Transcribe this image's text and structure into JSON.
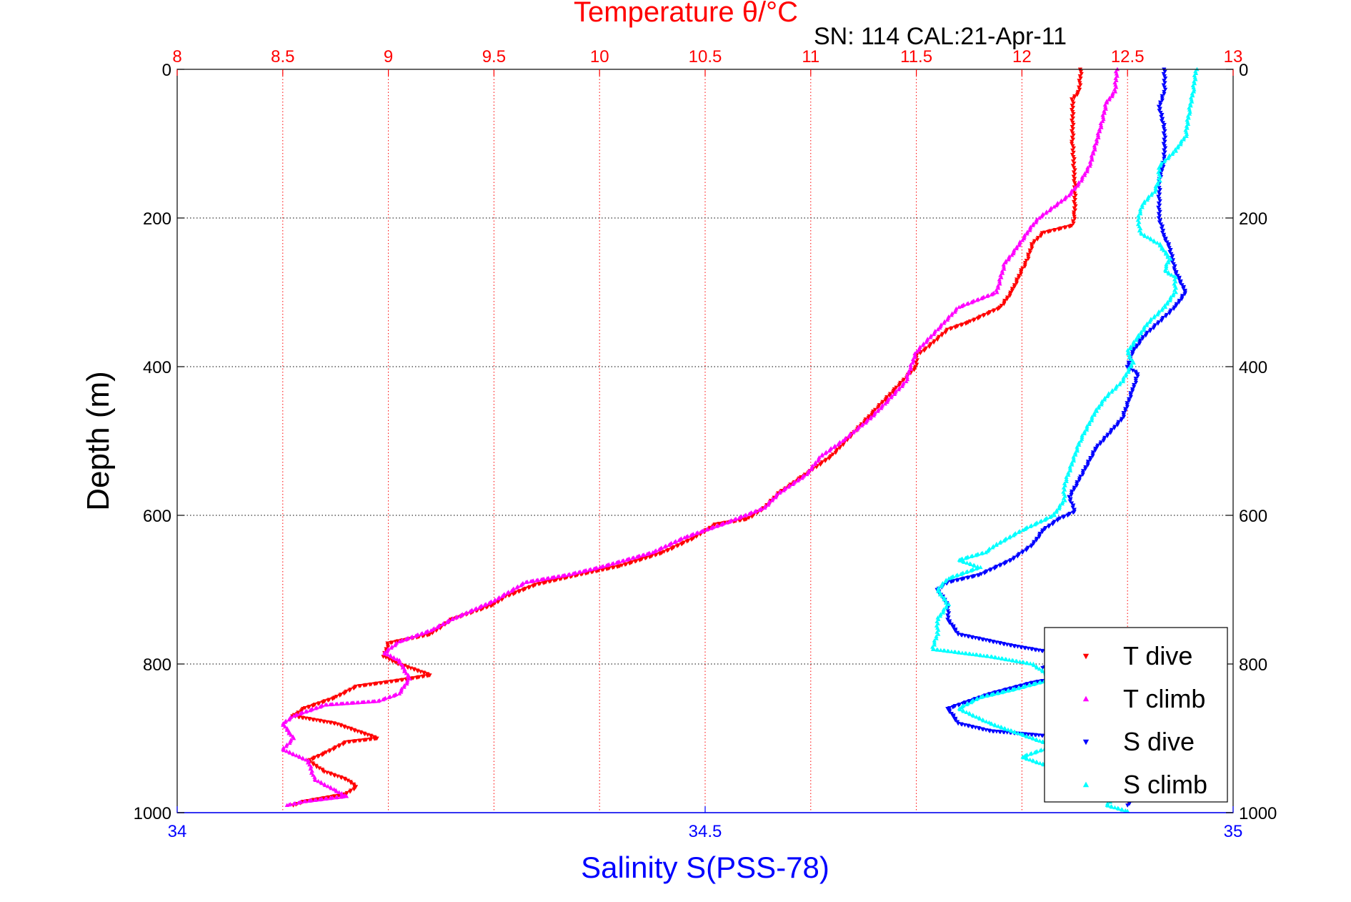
{
  "header": {
    "top_title": "Temperature θ/°C",
    "serial": "SN: 114  CAL:21-Apr-11"
  },
  "axes": {
    "ylabel": "Depth (m)",
    "xlabel_bottom": "Salinity S(PSS-78)"
  },
  "legend": {
    "items": [
      {
        "label": "T dive",
        "color": "#ff0000",
        "marker": "triangle-down"
      },
      {
        "label": "T climb",
        "color": "#ff00ff",
        "marker": "triangle-up"
      },
      {
        "label": "S dive",
        "color": "#0000ff",
        "marker": "triangle-down"
      },
      {
        "label": "S climb",
        "color": "#00ffff",
        "marker": "triangle-up"
      }
    ]
  },
  "colors": {
    "temperature_axis": "#ff0000",
    "salinity_axis": "#0000ff",
    "grid": "#000000",
    "t_grid": "#ff0000"
  },
  "chart_data": {
    "type": "scatter",
    "title": "Temperature θ/°C",
    "subtitle": "SN: 114  CAL:21-Apr-11",
    "ylabel": "Depth (m)",
    "xlabel": "Salinity S(PSS-78)",
    "y_reversed": true,
    "ylim": [
      0,
      1000
    ],
    "yticks": [
      0,
      200,
      400,
      600,
      800,
      1000
    ],
    "temperature_axis": {
      "position": "top",
      "lim": [
        8,
        13
      ],
      "ticks": [
        8,
        8.5,
        9,
        9.5,
        10,
        10.5,
        11,
        11.5,
        12,
        12.5,
        13
      ]
    },
    "salinity_axis": {
      "position": "bottom",
      "lim": [
        34,
        35
      ],
      "ticks": [
        34,
        34.5,
        35
      ]
    },
    "grid": true,
    "legend_position": "lower-right",
    "series": [
      {
        "name": "T dive",
        "axis": "temperature",
        "color": "#ff0000",
        "points": [
          [
            12.28,
            0
          ],
          [
            12.27,
            30
          ],
          [
            12.24,
            40
          ],
          [
            12.24,
            100
          ],
          [
            12.25,
            150
          ],
          [
            12.25,
            195
          ],
          [
            12.24,
            210
          ],
          [
            12.1,
            220
          ],
          [
            12.05,
            235
          ],
          [
            12.02,
            260
          ],
          [
            12.0,
            270
          ],
          [
            11.95,
            300
          ],
          [
            11.9,
            320
          ],
          [
            11.75,
            340
          ],
          [
            11.65,
            350
          ],
          [
            11.55,
            375
          ],
          [
            11.5,
            385
          ],
          [
            11.5,
            400
          ],
          [
            11.4,
            430
          ],
          [
            11.3,
            460
          ],
          [
            11.2,
            490
          ],
          [
            11.1,
            520
          ],
          [
            11.0,
            540
          ],
          [
            10.95,
            550
          ],
          [
            10.85,
            570
          ],
          [
            10.78,
            590
          ],
          [
            10.7,
            605
          ],
          [
            10.55,
            612
          ],
          [
            10.45,
            630
          ],
          [
            10.3,
            650
          ],
          [
            10.1,
            668
          ],
          [
            9.9,
            680
          ],
          [
            9.7,
            693
          ],
          [
            9.55,
            710
          ],
          [
            9.5,
            720
          ],
          [
            9.3,
            740
          ],
          [
            9.2,
            760
          ],
          [
            9.0,
            772
          ],
          [
            8.98,
            790
          ],
          [
            9.05,
            800
          ],
          [
            9.2,
            815
          ],
          [
            9.05,
            822
          ],
          [
            8.85,
            830
          ],
          [
            8.75,
            845
          ],
          [
            8.6,
            860
          ],
          [
            8.55,
            870
          ],
          [
            8.75,
            880
          ],
          [
            8.95,
            900
          ],
          [
            8.8,
            905
          ],
          [
            8.7,
            920
          ],
          [
            8.62,
            930
          ],
          [
            8.7,
            945
          ],
          [
            8.8,
            955
          ],
          [
            8.85,
            965
          ],
          [
            8.8,
            975
          ],
          [
            8.6,
            985
          ],
          [
            8.55,
            990
          ]
        ]
      },
      {
        "name": "T climb",
        "axis": "temperature",
        "color": "#ff00ff",
        "points": [
          [
            12.45,
            0
          ],
          [
            12.44,
            30
          ],
          [
            12.4,
            45
          ],
          [
            12.38,
            70
          ],
          [
            12.35,
            100
          ],
          [
            12.32,
            130
          ],
          [
            12.28,
            150
          ],
          [
            12.22,
            170
          ],
          [
            12.15,
            185
          ],
          [
            12.08,
            200
          ],
          [
            12.05,
            210
          ],
          [
            12.0,
            230
          ],
          [
            11.95,
            250
          ],
          [
            11.92,
            260
          ],
          [
            11.9,
            280
          ],
          [
            11.88,
            300
          ],
          [
            11.7,
            320
          ],
          [
            11.6,
            350
          ],
          [
            11.5,
            380
          ],
          [
            11.48,
            395
          ],
          [
            11.45,
            420
          ],
          [
            11.35,
            450
          ],
          [
            11.28,
            470
          ],
          [
            11.15,
            500
          ],
          [
            11.05,
            520
          ],
          [
            10.98,
            545
          ],
          [
            10.85,
            570
          ],
          [
            10.78,
            590
          ],
          [
            10.6,
            610
          ],
          [
            10.4,
            630
          ],
          [
            10.25,
            650
          ],
          [
            10.0,
            670
          ],
          [
            9.85,
            680
          ],
          [
            9.65,
            690
          ],
          [
            9.5,
            715
          ],
          [
            9.3,
            740
          ],
          [
            9.2,
            755
          ],
          [
            9.05,
            770
          ],
          [
            8.98,
            785
          ],
          [
            9.05,
            795
          ],
          [
            9.1,
            820
          ],
          [
            9.05,
            840
          ],
          [
            8.95,
            850
          ],
          [
            8.7,
            855
          ],
          [
            8.55,
            870
          ],
          [
            8.5,
            880
          ],
          [
            8.55,
            900
          ],
          [
            8.5,
            915
          ],
          [
            8.62,
            930
          ],
          [
            8.65,
            955
          ],
          [
            8.75,
            970
          ],
          [
            8.8,
            978
          ],
          [
            8.6,
            985
          ],
          [
            8.52,
            990
          ]
        ]
      },
      {
        "name": "S dive",
        "axis": "salinity",
        "color": "#0000ff",
        "points": [
          [
            34.935,
            0
          ],
          [
            34.935,
            30
          ],
          [
            34.93,
            50
          ],
          [
            34.935,
            80
          ],
          [
            34.935,
            120
          ],
          [
            34.93,
            150
          ],
          [
            34.93,
            180
          ],
          [
            34.93,
            200
          ],
          [
            34.935,
            225
          ],
          [
            34.94,
            240
          ],
          [
            34.945,
            270
          ],
          [
            34.955,
            300
          ],
          [
            34.945,
            320
          ],
          [
            34.93,
            340
          ],
          [
            34.915,
            360
          ],
          [
            34.905,
            380
          ],
          [
            34.9,
            400
          ],
          [
            34.91,
            410
          ],
          [
            34.905,
            430
          ],
          [
            34.895,
            470
          ],
          [
            34.87,
            510
          ],
          [
            34.855,
            550
          ],
          [
            34.845,
            575
          ],
          [
            34.85,
            595
          ],
          [
            34.835,
            605
          ],
          [
            34.82,
            620
          ],
          [
            34.81,
            640
          ],
          [
            34.79,
            660
          ],
          [
            34.76,
            680
          ],
          [
            34.73,
            690
          ],
          [
            34.72,
            700
          ],
          [
            34.73,
            720
          ],
          [
            34.73,
            740
          ],
          [
            34.74,
            760
          ],
          [
            34.79,
            775
          ],
          [
            34.85,
            790
          ],
          [
            34.82,
            805
          ],
          [
            34.85,
            815
          ],
          [
            34.81,
            825
          ],
          [
            34.77,
            840
          ],
          [
            34.73,
            860
          ],
          [
            34.74,
            880
          ],
          [
            34.77,
            890
          ],
          [
            34.85,
            900
          ],
          [
            34.87,
            910
          ],
          [
            34.86,
            920
          ],
          [
            34.84,
            935
          ],
          [
            34.85,
            950
          ],
          [
            34.88,
            960
          ],
          [
            34.91,
            975
          ],
          [
            34.9,
            990
          ]
        ]
      },
      {
        "name": "S climb",
        "axis": "salinity",
        "color": "#00ffff",
        "points": [
          [
            34.965,
            0
          ],
          [
            34.962,
            30
          ],
          [
            34.958,
            60
          ],
          [
            34.955,
            90
          ],
          [
            34.945,
            110
          ],
          [
            34.93,
            130
          ],
          [
            34.93,
            150
          ],
          [
            34.925,
            165
          ],
          [
            34.915,
            180
          ],
          [
            34.91,
            200
          ],
          [
            34.912,
            220
          ],
          [
            34.93,
            235
          ],
          [
            34.94,
            255
          ],
          [
            34.935,
            270
          ],
          [
            34.945,
            280
          ],
          [
            34.945,
            300
          ],
          [
            34.935,
            320
          ],
          [
            34.92,
            340
          ],
          [
            34.91,
            360
          ],
          [
            34.9,
            380
          ],
          [
            34.905,
            395
          ],
          [
            34.895,
            420
          ],
          [
            34.88,
            440
          ],
          [
            34.87,
            460
          ],
          [
            34.855,
            500
          ],
          [
            34.845,
            540
          ],
          [
            34.84,
            560
          ],
          [
            34.84,
            580
          ],
          [
            34.83,
            600
          ],
          [
            34.8,
            620
          ],
          [
            34.775,
            640
          ],
          [
            34.765,
            650
          ],
          [
            34.74,
            660
          ],
          [
            34.76,
            670
          ],
          [
            34.73,
            685
          ],
          [
            34.72,
            700
          ],
          [
            34.73,
            720
          ],
          [
            34.72,
            740
          ],
          [
            34.72,
            760
          ],
          [
            34.715,
            780
          ],
          [
            34.77,
            790
          ],
          [
            34.81,
            800
          ],
          [
            34.83,
            820
          ],
          [
            34.79,
            835
          ],
          [
            34.76,
            845
          ],
          [
            34.74,
            860
          ],
          [
            34.77,
            880
          ],
          [
            34.8,
            895
          ],
          [
            34.83,
            910
          ],
          [
            34.8,
            925
          ],
          [
            34.84,
            945
          ],
          [
            34.86,
            960
          ],
          [
            34.89,
            975
          ],
          [
            34.88,
            990
          ],
          [
            34.9,
            998
          ]
        ]
      }
    ]
  }
}
